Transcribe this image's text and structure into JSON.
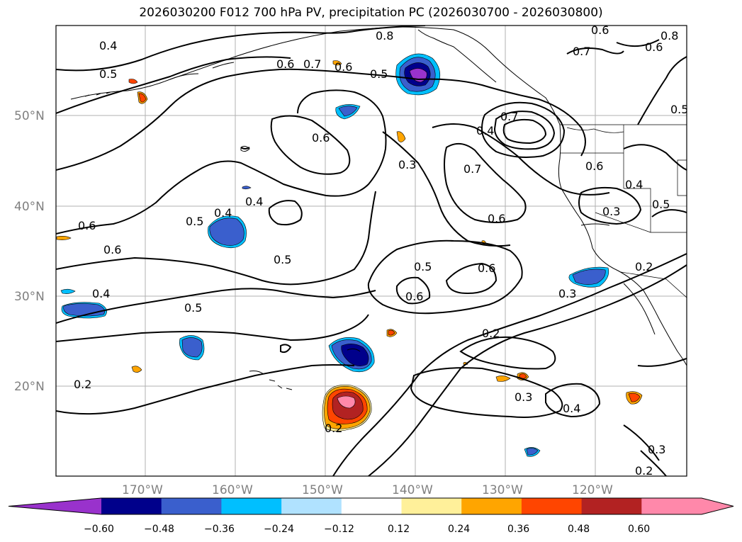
{
  "title": "2026030200 F012 700 hPa PV, precipitation PC (2026030700 - 2026030800)",
  "lat_labels": [
    "50°N",
    "40°N",
    "30°N",
    "20°N"
  ],
  "lon_labels": [
    "170°W",
    "160°W",
    "150°W",
    "140°W",
    "130°W",
    "120°W"
  ],
  "contour_labels": [
    "0.4",
    "0.5",
    "0.6",
    "0.7",
    "0.8",
    "0.6",
    "0.5",
    "0.6",
    "0.8",
    "0.7",
    "0.6",
    "0.7",
    "0.6",
    "0.3",
    "0.4",
    "0.7",
    "0.6",
    "0.4",
    "0.5",
    "0.6",
    "0.5",
    "0.4",
    "0.3",
    "0.6",
    "0.5",
    "0.4",
    "0.4",
    "0.6",
    "0.2",
    "0.5",
    "0.6",
    "0.3",
    "0.2",
    "0.2",
    "0.3",
    "0.4",
    "0.2",
    "0.3",
    "0.2",
    "0.5",
    "0.5",
    "0.6"
  ],
  "colorbar": {
    "ticks": [
      "−0.60",
      "−0.48",
      "−0.36",
      "−0.24",
      "−0.12",
      "0.12",
      "0.24",
      "0.36",
      "0.48",
      "0.60"
    ],
    "colors": [
      "#9932cc",
      "#00008b",
      "#3a5fcd",
      "#00bfff",
      "#b0e2ff",
      "#ffffff",
      "#fff09a",
      "#ffa500",
      "#ff4500",
      "#b22222",
      "#ff88aa",
      "#ff88aa"
    ]
  }
}
